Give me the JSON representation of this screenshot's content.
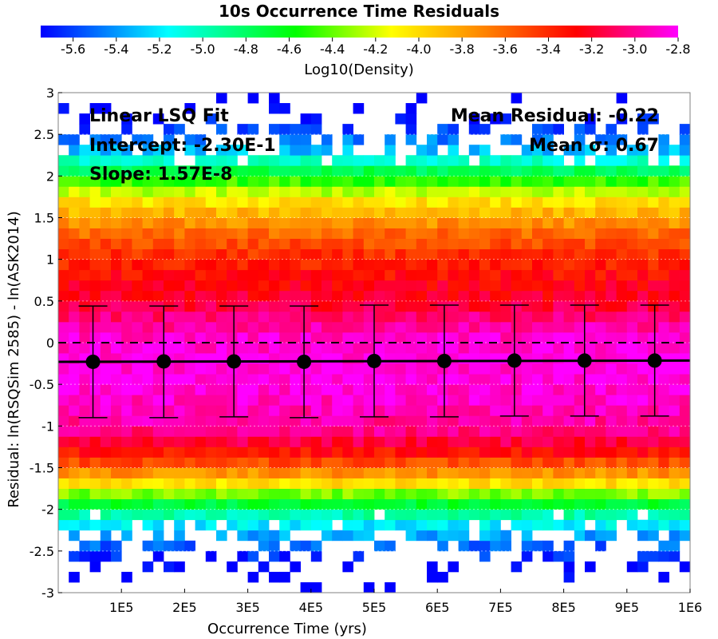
{
  "chart_data": {
    "type": "heatmap",
    "title": "10s Occurrence Time Residuals",
    "xlabel": "Occurrence Time (yrs)",
    "ylabel": "Residual: ln(RSQSim 2585) - ln(ASK2014)",
    "xlim": [
      0,
      1000000
    ],
    "ylim": [
      -3,
      3
    ],
    "x_tick_labels": [
      "1E5",
      "2E5",
      "3E5",
      "4E5",
      "5E5",
      "6E5",
      "7E5",
      "8E5",
      "9E5",
      "1E6"
    ],
    "x_tick_values": [
      100000,
      200000,
      300000,
      400000,
      500000,
      600000,
      700000,
      800000,
      900000,
      1000000
    ],
    "y_tick_labels": [
      "3",
      "2.5",
      "2",
      "1.5",
      "1",
      "0.5",
      "0",
      "-0.5",
      "-1",
      "-1.5",
      "-2",
      "-2.5",
      "-3"
    ],
    "y_tick_values": [
      3,
      2.5,
      2,
      1.5,
      1,
      0.5,
      0,
      -0.5,
      -1,
      -1.5,
      -2,
      -2.5,
      -3
    ],
    "colorbar": {
      "label": "Log10(Density)",
      "range": [
        -5.75,
        -2.8
      ],
      "tick_labels": [
        "-5.6",
        "-5.4",
        "-5.2",
        "-5.0",
        "-4.8",
        "-4.6",
        "-4.4",
        "-4.2",
        "-4.0",
        "-3.8",
        "-3.6",
        "-3.4",
        "-3.2",
        "-3.0",
        "-2.8"
      ],
      "tick_values": [
        -5.6,
        -5.4,
        -5.2,
        -5.0,
        -4.8,
        -4.6,
        -4.4,
        -4.2,
        -4.0,
        -3.8,
        -3.6,
        -3.4,
        -3.2,
        -3.0,
        -2.8
      ],
      "colors": [
        "#0000ff",
        "#00ffff",
        "#00ff00",
        "#ffff00",
        "#ff8000",
        "#ff0000",
        "#ff00ff"
      ]
    },
    "density_profile": {
      "residual": [
        -3.0,
        -2.7,
        -2.5,
        -2.3,
        -2.1,
        -1.9,
        -1.7,
        -1.5,
        -1.3,
        -1.1,
        -0.9,
        -0.5,
        -0.2,
        0.1,
        0.3,
        0.5,
        0.7,
        0.9,
        1.1,
        1.3,
        1.5,
        1.7,
        1.9,
        2.1,
        2.3,
        2.6,
        3.0
      ],
      "log10_density": [
        -5.9,
        -5.75,
        -5.6,
        -5.35,
        -5.05,
        -4.6,
        -4.05,
        -3.6,
        -3.3,
        -3.05,
        -2.95,
        -2.85,
        -2.85,
        -2.9,
        -3.05,
        -3.2,
        -3.25,
        -3.35,
        -3.45,
        -3.6,
        -3.8,
        -4.05,
        -4.4,
        -4.85,
        -5.3,
        -5.65,
        -5.9
      ]
    },
    "reference_line": {
      "y": 0,
      "style": "dashed"
    },
    "fit_line": {
      "x": [
        0,
        1000000
      ],
      "y": [
        -0.23,
        -0.2143
      ]
    },
    "binned_means": {
      "x": [
        55000,
        167000,
        278000,
        389000,
        500000,
        611000,
        722000,
        833000,
        944000
      ],
      "mean": [
        -0.23,
        -0.225,
        -0.225,
        -0.23,
        -0.22,
        -0.22,
        -0.215,
        -0.215,
        -0.215
      ],
      "upper": [
        0.44,
        0.44,
        0.44,
        0.44,
        0.45,
        0.45,
        0.45,
        0.45,
        0.45
      ],
      "lower": [
        -0.9,
        -0.9,
        -0.89,
        -0.9,
        -0.89,
        -0.89,
        -0.88,
        -0.88,
        -0.88
      ]
    },
    "annotations": {
      "fit_title": "Linear LSQ Fit",
      "intercept": "Intercept: -2.30E-1",
      "slope": "Slope: 1.57E-8",
      "mean_residual": "Mean Residual: -0.22",
      "mean_sigma": "Mean σ: 0.67"
    }
  }
}
